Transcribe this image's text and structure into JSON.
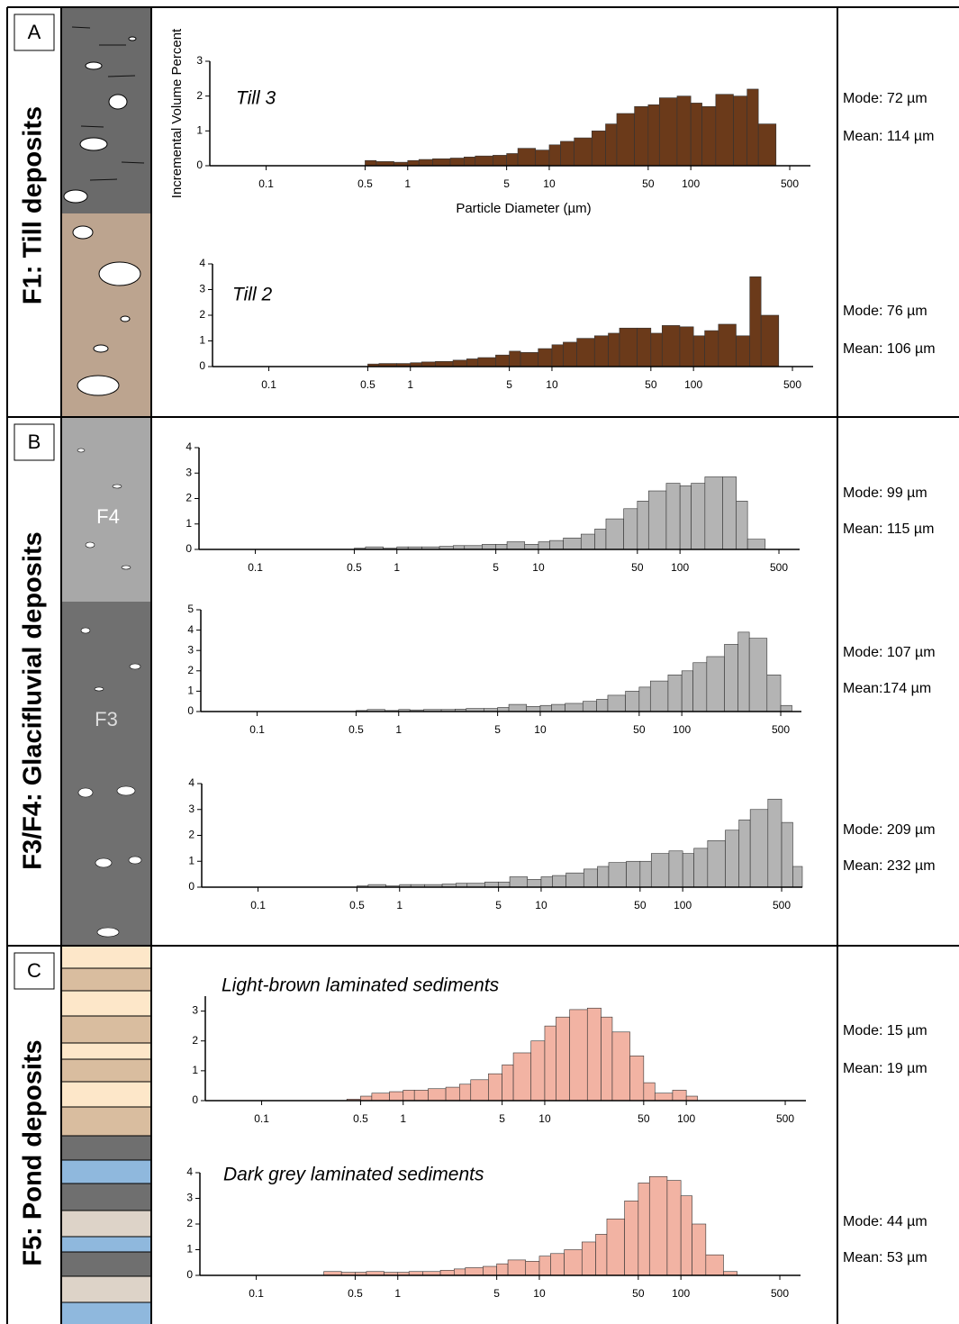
{
  "panels": [
    {
      "label": "A",
      "title": "F1: Till deposits"
    },
    {
      "label": "B",
      "title": "F3/F4: Glacifluvial deposits",
      "units": [
        "F4",
        "F3"
      ]
    },
    {
      "label": "C",
      "title": "F5: Pond deposits"
    }
  ],
  "chart_data": [
    {
      "type": "histogram",
      "title": "Till 3",
      "xlabel": "Particle Diameter (µm)",
      "ylabel": "Incremental Volume Percent",
      "color": "#6b3a1a",
      "log_x": true,
      "annotations": [
        "Mode: 72 µm",
        "Mean: 114 µm"
      ],
      "bins": [
        0.3,
        0.4,
        0.5,
        0.6,
        0.8,
        1,
        1.2,
        1.5,
        2,
        2.5,
        3,
        4,
        5,
        6,
        8,
        10,
        12,
        15,
        20,
        25,
        30,
        40,
        50,
        60,
        80,
        100,
        120,
        150,
        200,
        250,
        300,
        400,
        500,
        600,
        700
      ],
      "values": [
        0,
        0,
        0.15,
        0.12,
        0.1,
        0.15,
        0.18,
        0.2,
        0.22,
        0.25,
        0.28,
        0.3,
        0.35,
        0.5,
        0.45,
        0.6,
        0.7,
        0.8,
        1.0,
        1.2,
        1.5,
        1.7,
        1.75,
        1.95,
        2.0,
        1.8,
        1.7,
        2.05,
        2.0,
        2.2,
        1.2,
        0,
        0,
        0
      ],
      "xlim": [
        0.04,
        700
      ],
      "ylim": [
        0,
        3
      ],
      "xticks": [
        0.1,
        0.5,
        1,
        5,
        10,
        50,
        100,
        500
      ],
      "yticks": [
        0,
        1,
        2,
        3
      ]
    },
    {
      "type": "histogram",
      "title": "Till 2",
      "color": "#6b3a1a",
      "log_x": true,
      "annotations": [
        "Mode: 76 µm",
        "Mean: 106 µm"
      ],
      "bins": [
        0.3,
        0.4,
        0.5,
        0.6,
        0.8,
        1,
        1.2,
        1.5,
        2,
        2.5,
        3,
        4,
        5,
        6,
        8,
        10,
        12,
        15,
        20,
        25,
        30,
        40,
        50,
        60,
        80,
        100,
        120,
        150,
        200,
        250,
        300,
        400,
        500,
        600,
        700
      ],
      "values": [
        0,
        0,
        0.1,
        0.12,
        0.12,
        0.15,
        0.18,
        0.2,
        0.25,
        0.3,
        0.35,
        0.45,
        0.6,
        0.55,
        0.7,
        0.85,
        0.95,
        1.1,
        1.2,
        1.3,
        1.5,
        1.5,
        1.3,
        1.6,
        1.55,
        1.2,
        1.4,
        1.65,
        1.2,
        3.5,
        2.0,
        0,
        0,
        0
      ],
      "xlim": [
        0.04,
        700
      ],
      "ylim": [
        0,
        4
      ],
      "xticks": [
        0.1,
        0.5,
        1,
        5,
        10,
        50,
        100,
        500
      ],
      "yticks": [
        0,
        1,
        2,
        3,
        4
      ]
    },
    {
      "type": "histogram",
      "color": "#b4b4b4",
      "log_x": true,
      "annotations": [
        "Mode: 99 µm",
        "Mean: 115 µm"
      ],
      "bins": [
        0.3,
        0.4,
        0.5,
        0.6,
        0.8,
        1,
        1.2,
        1.5,
        2,
        2.5,
        3,
        4,
        5,
        6,
        8,
        10,
        12,
        15,
        20,
        25,
        30,
        40,
        50,
        60,
        80,
        100,
        120,
        150,
        200,
        250,
        300,
        400,
        500,
        600,
        700
      ],
      "values": [
        0,
        0,
        0.05,
        0.1,
        0.05,
        0.1,
        0.1,
        0.1,
        0.12,
        0.15,
        0.15,
        0.2,
        0.2,
        0.3,
        0.2,
        0.3,
        0.35,
        0.45,
        0.6,
        0.8,
        1.2,
        1.6,
        1.9,
        2.3,
        2.6,
        2.5,
        2.6,
        2.85,
        2.85,
        1.9,
        0.4,
        0,
        0,
        0
      ],
      "xlim": [
        0.04,
        700
      ],
      "ylim": [
        0,
        4
      ],
      "xticks": [
        0.1,
        0.5,
        1,
        5,
        10,
        50,
        100,
        500
      ],
      "yticks": [
        0,
        1,
        2,
        3,
        4
      ]
    },
    {
      "type": "histogram",
      "color": "#b4b4b4",
      "log_x": true,
      "annotations": [
        "Mode: 107 µm",
        "Mean:174 µm"
      ],
      "bins": [
        0.3,
        0.4,
        0.5,
        0.6,
        0.8,
        1,
        1.2,
        1.5,
        2,
        2.5,
        3,
        4,
        5,
        6,
        8,
        10,
        12,
        15,
        20,
        25,
        30,
        40,
        50,
        60,
        80,
        100,
        120,
        150,
        200,
        250,
        300,
        400,
        500,
        600,
        700
      ],
      "values": [
        0,
        0,
        0.05,
        0.1,
        0.05,
        0.1,
        0.08,
        0.1,
        0.1,
        0.12,
        0.15,
        0.15,
        0.2,
        0.35,
        0.25,
        0.3,
        0.35,
        0.4,
        0.5,
        0.6,
        0.8,
        1.0,
        1.2,
        1.5,
        1.8,
        2.0,
        2.4,
        2.7,
        3.3,
        3.9,
        3.6,
        1.8,
        0.3,
        0
      ],
      "xlim": [
        0.04,
        700
      ],
      "ylim": [
        0,
        5
      ],
      "xticks": [
        0.1,
        0.5,
        1,
        5,
        10,
        50,
        100,
        500
      ],
      "yticks": [
        0,
        1,
        2,
        3,
        4,
        5
      ]
    },
    {
      "type": "histogram",
      "color": "#b4b4b4",
      "log_x": true,
      "annotations": [
        "Mode: 209 µm",
        "Mean: 232 µm"
      ],
      "bins": [
        0.3,
        0.4,
        0.5,
        0.6,
        0.8,
        1,
        1.2,
        1.5,
        2,
        2.5,
        3,
        4,
        5,
        6,
        8,
        10,
        12,
        15,
        20,
        25,
        30,
        40,
        50,
        60,
        80,
        100,
        120,
        150,
        200,
        250,
        300,
        400,
        500,
        600,
        700
      ],
      "values": [
        0,
        0,
        0.05,
        0.1,
        0.05,
        0.1,
        0.1,
        0.1,
        0.12,
        0.15,
        0.15,
        0.2,
        0.2,
        0.4,
        0.3,
        0.4,
        0.45,
        0.55,
        0.7,
        0.8,
        0.95,
        1.0,
        1.0,
        1.3,
        1.4,
        1.3,
        1.5,
        1.8,
        2.2,
        2.6,
        3.0,
        3.4,
        2.5,
        0.8
      ],
      "xlim": [
        0.04,
        700
      ],
      "ylim": [
        0,
        4
      ],
      "xticks": [
        0.1,
        0.5,
        1,
        5,
        10,
        50,
        100,
        500
      ],
      "yticks": [
        0,
        1,
        2,
        3,
        4
      ]
    },
    {
      "type": "histogram",
      "title": "Light-brown laminated sediments",
      "color": "#f2b3a3",
      "log_x": true,
      "annotations": [
        "Mode: 15 µm",
        "Mean: 19 µm"
      ],
      "bins": [
        0.3,
        0.4,
        0.5,
        0.6,
        0.8,
        1,
        1.2,
        1.5,
        2,
        2.5,
        3,
        4,
        5,
        6,
        8,
        10,
        12,
        15,
        20,
        25,
        30,
        40,
        50,
        60,
        80,
        100,
        120,
        150,
        200,
        250,
        300,
        400,
        500,
        600,
        700
      ],
      "values": [
        0,
        0.05,
        0.15,
        0.25,
        0.3,
        0.35,
        0.35,
        0.4,
        0.45,
        0.55,
        0.7,
        0.9,
        1.2,
        1.6,
        2.0,
        2.5,
        2.8,
        3.05,
        3.1,
        2.8,
        2.3,
        1.5,
        0.6,
        0.25,
        0.35,
        0.15,
        0,
        0,
        0,
        0,
        0,
        0,
        0,
        0
      ],
      "xlim": [
        0.04,
        700
      ],
      "ylim": [
        0,
        3.5
      ],
      "xticks": [
        0.1,
        0.5,
        1,
        5,
        10,
        50,
        100,
        500
      ],
      "yticks": [
        0,
        1,
        2,
        3
      ]
    },
    {
      "type": "histogram",
      "title": "Dark grey laminated sediments",
      "color": "#f2b3a3",
      "log_x": true,
      "annotations": [
        "Mode: 44 µm",
        "Mean: 53 µm"
      ],
      "bins": [
        0.3,
        0.4,
        0.5,
        0.6,
        0.8,
        1,
        1.2,
        1.5,
        2,
        2.5,
        3,
        4,
        5,
        6,
        8,
        10,
        12,
        15,
        20,
        25,
        30,
        40,
        50,
        60,
        80,
        100,
        120,
        150,
        200,
        250,
        300,
        400,
        500,
        600,
        700
      ],
      "values": [
        0.15,
        0.12,
        0.12,
        0.15,
        0.12,
        0.12,
        0.15,
        0.15,
        0.2,
        0.25,
        0.3,
        0.35,
        0.45,
        0.6,
        0.55,
        0.75,
        0.85,
        1.0,
        1.3,
        1.6,
        2.2,
        2.9,
        3.6,
        3.85,
        3.7,
        3.1,
        2.0,
        0.8,
        0.15,
        0,
        0,
        0,
        0,
        0
      ],
      "xlim": [
        0.04,
        700
      ],
      "ylim": [
        0,
        4
      ],
      "xticks": [
        0.1,
        0.5,
        1,
        5,
        10,
        50,
        100,
        500
      ],
      "yticks": [
        0,
        1,
        2,
        3,
        4
      ]
    }
  ]
}
